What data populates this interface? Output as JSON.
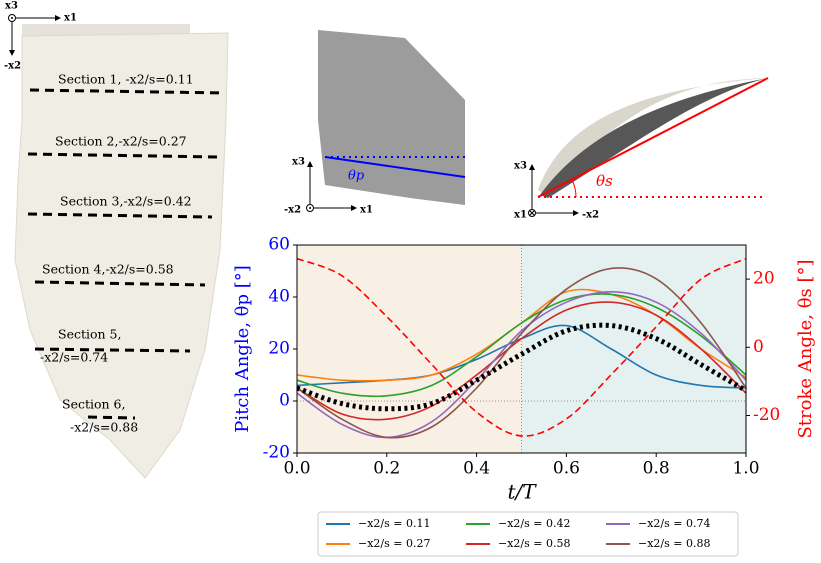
{
  "figure": {
    "axes_key": {
      "up": "x3",
      "right": "x1",
      "down": "-x2"
    },
    "sections": [
      {
        "lines": [
          "Section 1, -x2/s=0.11"
        ]
      },
      {
        "lines": [
          "Section 2,-x2/s=0.27"
        ]
      },
      {
        "lines": [
          "Section 3,-x2/s=0.42"
        ]
      },
      {
        "lines": [
          "Section 4,-x2/s=0.58"
        ]
      },
      {
        "lines": [
          "Section 5,",
          "-x2/s=0.74"
        ]
      },
      {
        "lines": [
          "Section 6,",
          "-x2/s=0.88"
        ]
      }
    ],
    "pitch_diagram": {
      "up": "x3",
      "right": "x1",
      "left": "-x2",
      "angle": "θp"
    },
    "stroke_diagram": {
      "up": "x3",
      "left": "x1",
      "right": "-x2",
      "angle": "θs"
    }
  },
  "chart_data": {
    "type": "line",
    "xlabel": "t/T",
    "ylabel": "Pitch Angle, θp [°]",
    "y2label": "Stroke Angle, θs [°]",
    "ycolor": "#0000ff",
    "y2color": "#ff0000",
    "x": [
      0,
      0.1,
      0.2,
      0.3,
      0.4,
      0.5,
      0.6,
      0.7,
      0.8,
      0.9,
      1
    ],
    "xlim": [
      0,
      1
    ],
    "ylim": [
      -20,
      60
    ],
    "y2lim": [
      -31,
      30
    ],
    "xticks": [
      {
        "value": 0,
        "label": "0.0"
      },
      0.2,
      0.4,
      0.6,
      0.8,
      {
        "value": 1,
        "label": "1.0"
      }
    ],
    "yticks": [
      -20,
      0,
      20,
      40,
      60
    ],
    "y2ticks": [
      -20,
      0,
      20
    ],
    "regions": [
      {
        "xlim": [
          0,
          0.5
        ],
        "color": "#f8efe5"
      },
      {
        "xlim": [
          0.5,
          1
        ],
        "color": "#e5f1f1"
      }
    ],
    "vlines": [
      0.5
    ],
    "hlines": [
      0
    ],
    "legend": "below",
    "series": [
      {
        "name": "−x2/s = 0.11",
        "color": "#1f77b4",
        "values": [
          6,
          7,
          8,
          10,
          16,
          24,
          29,
          20,
          10,
          6,
          5
        ]
      },
      {
        "name": "−x2/s = 0.27",
        "color": "#ff7f0e",
        "values": [
          10,
          8,
          8,
          10,
          18,
          30,
          42,
          41,
          33,
          20,
          9
        ]
      },
      {
        "name": "−x2/s = 0.42",
        "color": "#2ca02c",
        "values": [
          8,
          3,
          2,
          6,
          17,
          30,
          39,
          41,
          36,
          25,
          10
        ]
      },
      {
        "name": "−x2/s = 0.58",
        "color": "#d62728",
        "values": [
          5,
          -5,
          -7,
          -2,
          10,
          24,
          35,
          38,
          33,
          20,
          3
        ]
      },
      {
        "name": "−x2/s = 0.74",
        "color": "#9467bd",
        "values": [
          3,
          -9,
          -14,
          -8,
          8,
          27,
          38,
          42,
          38,
          26,
          8
        ]
      },
      {
        "name": "−x2/s = 0.88",
        "color": "#8c564b",
        "values": [
          5,
          -7,
          -14,
          -10,
          5,
          26,
          43,
          51,
          47,
          30,
          5
        ]
      },
      {
        "color": "#000000",
        "style": "dotted",
        "values": [
          5,
          -1,
          -3,
          -1,
          8,
          18,
          27,
          29,
          24,
          14,
          4
        ]
      },
      {
        "color": "#ff0000",
        "style": "dashed",
        "axis": "y2",
        "values": [
          26,
          21,
          9,
          -5,
          -19,
          -26,
          -21,
          -8,
          6,
          20,
          26
        ]
      }
    ]
  }
}
